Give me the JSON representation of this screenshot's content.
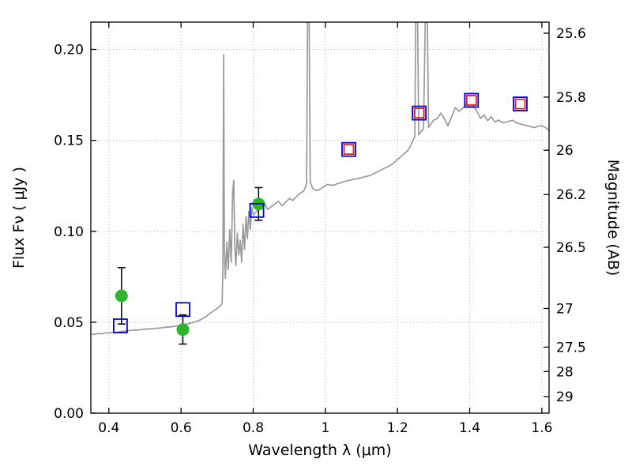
{
  "chart_data": {
    "type": "line",
    "title": "",
    "xlabel": "Wavelength  λ (μm)",
    "ylabel_left": "Flux  Fν  ( μJy )",
    "ylabel_right": "Magnitude (AB)",
    "xlim": [
      0.35,
      1.62
    ],
    "ylim": [
      0.0,
      0.215
    ],
    "grid": true,
    "mag_zeropoint": 23.9,
    "x_ticks": [
      {
        "v": 0.4,
        "label": "0.4"
      },
      {
        "v": 0.6,
        "label": "0.6"
      },
      {
        "v": 0.8,
        "label": "0.8"
      },
      {
        "v": 1.0,
        "label": "1"
      },
      {
        "v": 1.2,
        "label": "1.2"
      },
      {
        "v": 1.4,
        "label": "1.4"
      },
      {
        "v": 1.6,
        "label": "1.6"
      }
    ],
    "y_ticks_left": [
      {
        "v": 0.0,
        "label": "0.00"
      },
      {
        "v": 0.05,
        "label": "0.05"
      },
      {
        "v": 0.1,
        "label": "0.10"
      },
      {
        "v": 0.15,
        "label": "0.15"
      },
      {
        "v": 0.2,
        "label": "0.20"
      }
    ],
    "y_ticks_right_mag": [
      {
        "v": 25.6,
        "label": "25.6"
      },
      {
        "v": 25.8,
        "label": "25.8"
      },
      {
        "v": 26.0,
        "label": "26"
      },
      {
        "v": 26.2,
        "label": "26.2"
      },
      {
        "v": 26.5,
        "label": "26.5"
      },
      {
        "v": 27.0,
        "label": "27"
      },
      {
        "v": 27.5,
        "label": "27.5"
      },
      {
        "v": 28.0,
        "label": "28"
      },
      {
        "v": 29.0,
        "label": "29"
      }
    ],
    "series": [
      {
        "name": "model-spectrum",
        "type": "line",
        "color": "#9a9a9a",
        "x": [
          0.352,
          0.36,
          0.37,
          0.38,
          0.39,
          0.4,
          0.41,
          0.42,
          0.43,
          0.44,
          0.45,
          0.46,
          0.47,
          0.48,
          0.49,
          0.5,
          0.51,
          0.52,
          0.53,
          0.54,
          0.55,
          0.56,
          0.57,
          0.58,
          0.59,
          0.6,
          0.61,
          0.62,
          0.63,
          0.64,
          0.65,
          0.66,
          0.67,
          0.68,
          0.69,
          0.7,
          0.705,
          0.71,
          0.714,
          0.716,
          0.718,
          0.72,
          0.723,
          0.727,
          0.731,
          0.735,
          0.739,
          0.743,
          0.746,
          0.749,
          0.752,
          0.756,
          0.76,
          0.764,
          0.768,
          0.772,
          0.776,
          0.78,
          0.784,
          0.788,
          0.792,
          0.796,
          0.8,
          0.81,
          0.82,
          0.83,
          0.84,
          0.85,
          0.86,
          0.87,
          0.88,
          0.89,
          0.9,
          0.91,
          0.92,
          0.93,
          0.94,
          0.948,
          0.951,
          0.9545,
          0.958,
          0.965,
          0.975,
          0.985,
          0.995,
          1.005,
          1.02,
          1.035,
          1.05,
          1.065,
          1.08,
          1.095,
          1.11,
          1.125,
          1.14,
          1.155,
          1.17,
          1.185,
          1.2,
          1.215,
          1.23,
          1.242,
          1.248,
          1.251,
          1.255,
          1.259,
          1.266,
          1.272,
          1.278,
          1.282,
          1.286,
          1.292,
          1.3,
          1.31,
          1.32,
          1.33,
          1.34,
          1.35,
          1.36,
          1.37,
          1.38,
          1.39,
          1.4,
          1.41,
          1.42,
          1.43,
          1.44,
          1.45,
          1.46,
          1.47,
          1.48,
          1.49,
          1.5,
          1.51,
          1.52,
          1.53,
          1.54,
          1.55,
          1.56,
          1.57,
          1.58,
          1.59,
          1.6,
          1.61,
          1.62
        ],
        "y": [
          0.0435,
          0.0433,
          0.0438,
          0.0436,
          0.0442,
          0.044,
          0.0444,
          0.0443,
          0.0448,
          0.045,
          0.0452,
          0.0455,
          0.0458,
          0.0456,
          0.046,
          0.0462,
          0.0464,
          0.0463,
          0.0467,
          0.0468,
          0.047,
          0.0473,
          0.0474,
          0.0477,
          0.048,
          0.0483,
          0.0487,
          0.0492,
          0.0497,
          0.0503,
          0.051,
          0.052,
          0.0532,
          0.0548,
          0.0562,
          0.0575,
          0.0583,
          0.0592,
          0.0605,
          0.078,
          0.197,
          0.092,
          0.074,
          0.094,
          0.079,
          0.101,
          0.083,
          0.122,
          0.128,
          0.092,
          0.081,
          0.099,
          0.087,
          0.095,
          0.083,
          0.104,
          0.09,
          0.108,
          0.096,
          0.111,
          0.101,
          0.113,
          0.109,
          0.111,
          0.113,
          0.116,
          0.112,
          0.1135,
          0.115,
          0.1165,
          0.114,
          0.116,
          0.118,
          0.117,
          0.119,
          0.121,
          0.122,
          0.126,
          0.23,
          0.23,
          0.127,
          0.1235,
          0.1225,
          0.123,
          0.1245,
          0.1258,
          0.1252,
          0.1262,
          0.1272,
          0.128,
          0.1286,
          0.1292,
          0.13,
          0.1308,
          0.1322,
          0.1338,
          0.1352,
          0.1368,
          0.1395,
          0.142,
          0.1448,
          0.1495,
          0.152,
          0.23,
          0.23,
          0.153,
          0.155,
          0.156,
          0.23,
          0.23,
          0.157,
          0.159,
          0.161,
          0.162,
          0.165,
          0.1618,
          0.158,
          0.163,
          0.168,
          0.166,
          0.1675,
          0.17,
          0.168,
          0.169,
          0.166,
          0.162,
          0.164,
          0.1608,
          0.163,
          0.16,
          0.1612,
          0.1598,
          0.16,
          0.1606,
          0.161,
          0.1596,
          0.159,
          0.1585,
          0.158,
          0.1574,
          0.157,
          0.1578,
          0.158,
          0.157,
          0.1555
        ]
      },
      {
        "name": "observed-photometry",
        "type": "scatter",
        "marker": "circle",
        "color": "#2db52d",
        "errorbar_color": "#000000",
        "size": 8,
        "points": [
          {
            "x": 0.435,
            "y": 0.0645,
            "yerr": 0.0155
          },
          {
            "x": 0.605,
            "y": 0.046,
            "yerr": 0.008
          },
          {
            "x": 0.815,
            "y": 0.115,
            "yerr": 0.009
          }
        ]
      },
      {
        "name": "synthetic-photometry-wide",
        "type": "scatter",
        "marker": "square-open",
        "color": "#0000dd",
        "size": 17,
        "points": [
          {
            "x": 0.432,
            "y": 0.048
          },
          {
            "x": 0.605,
            "y": 0.057
          },
          {
            "x": 0.81,
            "y": 0.1115
          },
          {
            "x": 1.065,
            "y": 0.145
          },
          {
            "x": 1.26,
            "y": 0.165
          },
          {
            "x": 1.405,
            "y": 0.172
          },
          {
            "x": 1.54,
            "y": 0.17
          }
        ]
      },
      {
        "name": "synthetic-photometry-narrow",
        "type": "scatter",
        "marker": "square-open",
        "color": "#e02020",
        "size": 12,
        "points": [
          {
            "x": 1.065,
            "y": 0.145
          },
          {
            "x": 1.26,
            "y": 0.165
          },
          {
            "x": 1.405,
            "y": 0.172
          },
          {
            "x": 1.54,
            "y": 0.17
          }
        ]
      }
    ]
  }
}
